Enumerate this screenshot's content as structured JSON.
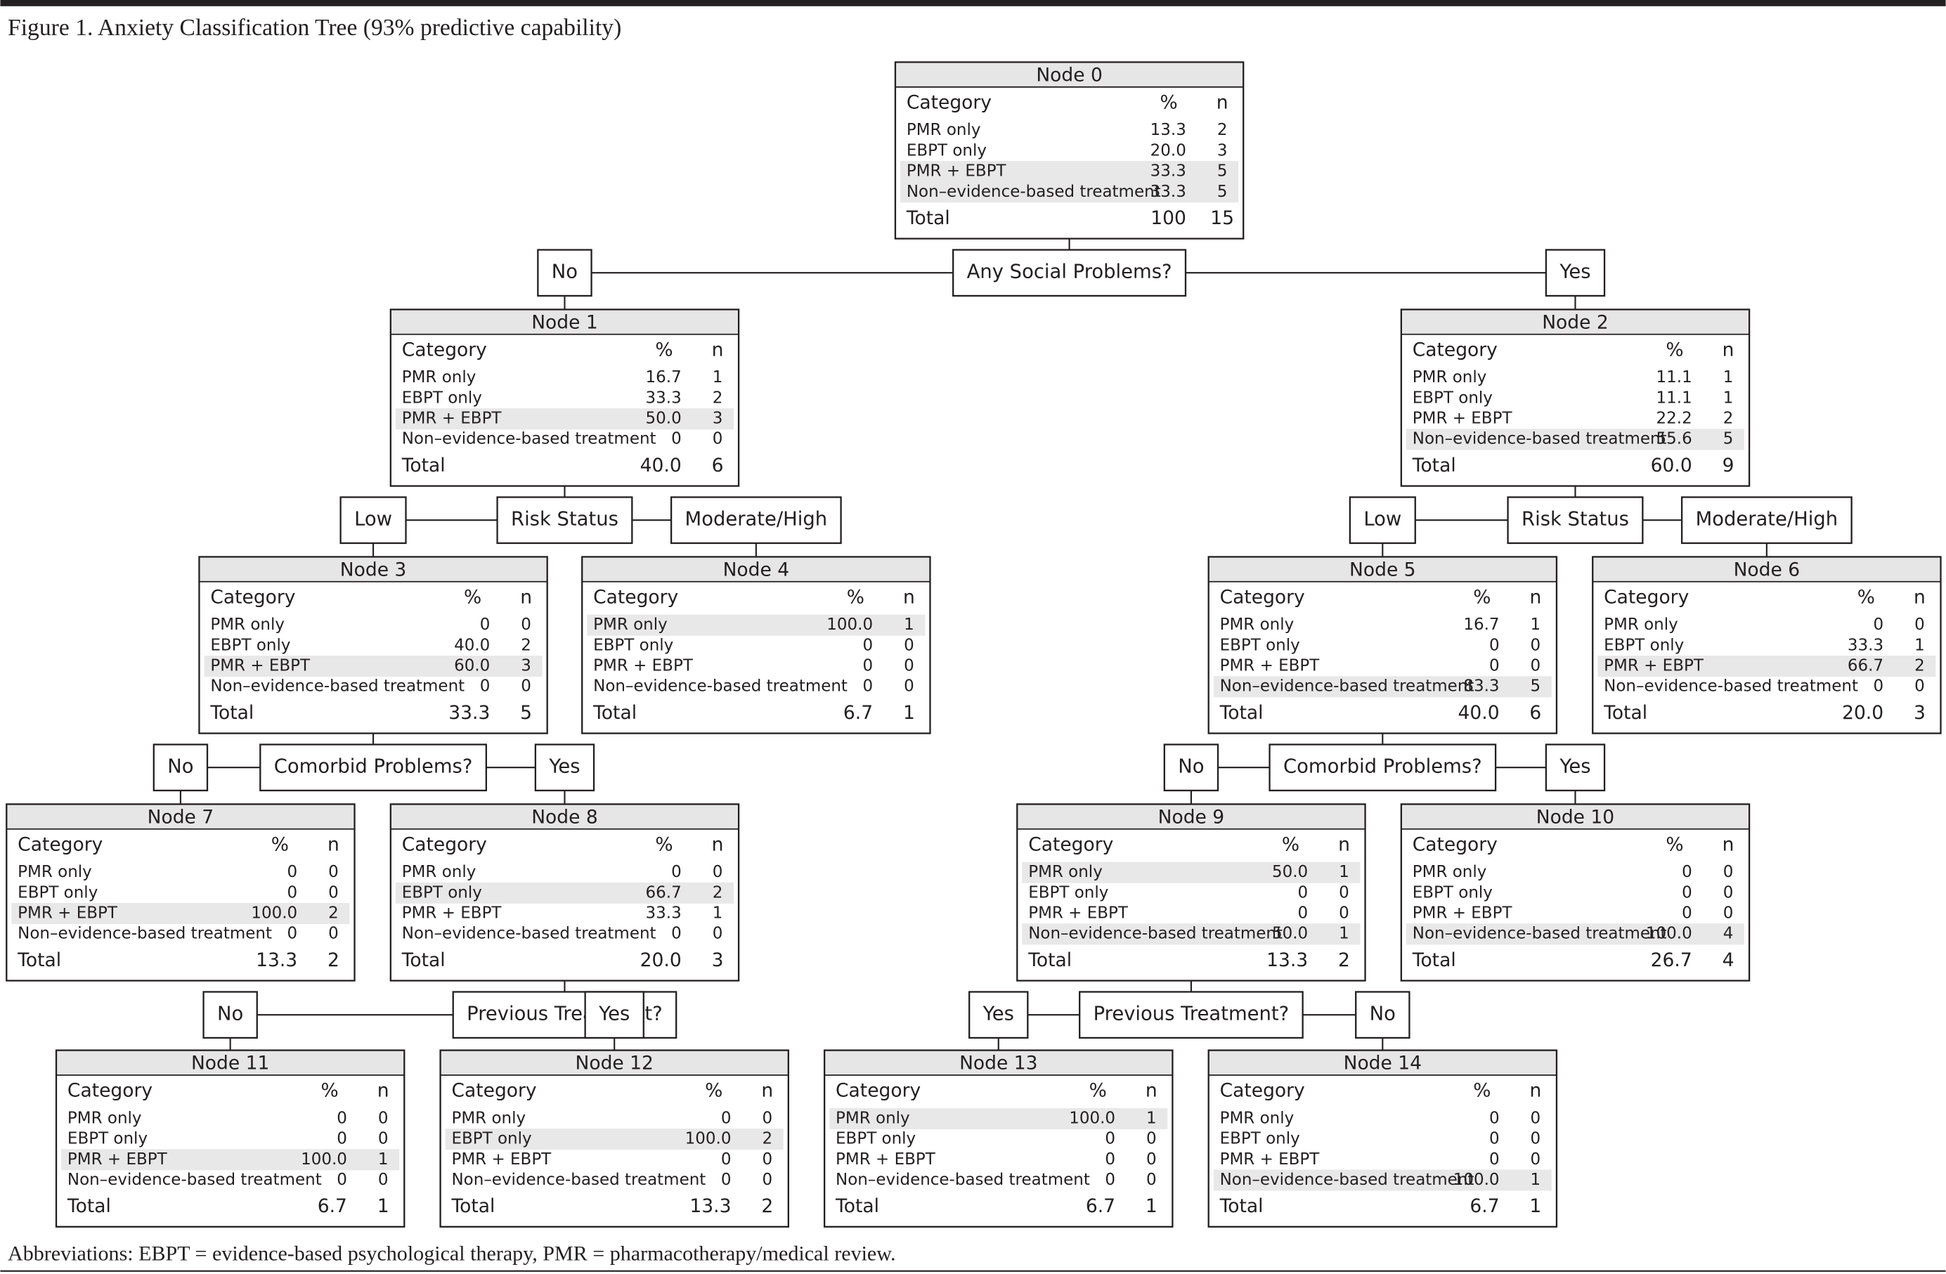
{
  "title": "Figure 1. Anxiety Classification Tree (93% predictive capability)",
  "columns": [
    "Category",
    "%",
    "n"
  ],
  "nodes": [
    {
      "title": "Node 0",
      "rows": [
        [
          "PMR only",
          "13.3",
          "2"
        ],
        [
          "EBPT only",
          "20.0",
          "3"
        ],
        [
          "PMR + EBPT",
          "33.3",
          "5"
        ],
        [
          "Non–evidence-based treatment",
          "33.3",
          "5"
        ]
      ],
      "total": [
        "Total",
        "100",
        "15"
      ],
      "highlight": [
        2,
        3
      ]
    },
    {
      "title": "Node 1",
      "rows": [
        [
          "PMR only",
          "16.7",
          "1"
        ],
        [
          "EBPT only",
          "33.3",
          "2"
        ],
        [
          "PMR + EBPT",
          "50.0",
          "3"
        ],
        [
          "Non–evidence-based treatment",
          "0",
          "0"
        ]
      ],
      "total": [
        "Total",
        "40.0",
        "6"
      ],
      "highlight": [
        2
      ]
    },
    {
      "title": "Node 2",
      "rows": [
        [
          "PMR only",
          "11.1",
          "1"
        ],
        [
          "EBPT only",
          "11.1",
          "1"
        ],
        [
          "PMR + EBPT",
          "22.2",
          "2"
        ],
        [
          "Non–evidence-based treatment",
          "55.6",
          "5"
        ]
      ],
      "total": [
        "Total",
        "60.0",
        "9"
      ],
      "highlight": [
        3
      ]
    },
    {
      "title": "Node 3",
      "rows": [
        [
          "PMR only",
          "0",
          "0"
        ],
        [
          "EBPT only",
          "40.0",
          "2"
        ],
        [
          "PMR + EBPT",
          "60.0",
          "3"
        ],
        [
          "Non–evidence-based treatment",
          "0",
          "0"
        ]
      ],
      "total": [
        "Total",
        "33.3",
        "5"
      ],
      "highlight": [
        2
      ]
    },
    {
      "title": "Node 4",
      "rows": [
        [
          "PMR only",
          "100.0",
          "1"
        ],
        [
          "EBPT only",
          "0",
          "0"
        ],
        [
          "PMR + EBPT",
          "0",
          "0"
        ],
        [
          "Non–evidence-based treatment",
          "0",
          "0"
        ]
      ],
      "total": [
        "Total",
        "6.7",
        "1"
      ],
      "highlight": [
        0
      ]
    },
    {
      "title": "Node 5",
      "rows": [
        [
          "PMR only",
          "16.7",
          "1"
        ],
        [
          "EBPT only",
          "0",
          "0"
        ],
        [
          "PMR + EBPT",
          "0",
          "0"
        ],
        [
          "Non–evidence-based treatment",
          "83.3",
          "5"
        ]
      ],
      "total": [
        "Total",
        "40.0",
        "6"
      ],
      "highlight": [
        3
      ]
    },
    {
      "title": "Node 6",
      "rows": [
        [
          "PMR only",
          "0",
          "0"
        ],
        [
          "EBPT only",
          "33.3",
          "1"
        ],
        [
          "PMR + EBPT",
          "66.7",
          "2"
        ],
        [
          "Non–evidence-based treatment",
          "0",
          "0"
        ]
      ],
      "total": [
        "Total",
        "20.0",
        "3"
      ],
      "highlight": [
        2
      ]
    },
    {
      "title": "Node 7",
      "rows": [
        [
          "PMR only",
          "0",
          "0"
        ],
        [
          "EBPT only",
          "0",
          "0"
        ],
        [
          "PMR + EBPT",
          "100.0",
          "2"
        ],
        [
          "Non–evidence-based treatment",
          "0",
          "0"
        ]
      ],
      "total": [
        "Total",
        "13.3",
        "2"
      ],
      "highlight": [
        2
      ]
    },
    {
      "title": "Node 8",
      "rows": [
        [
          "PMR only",
          "0",
          "0"
        ],
        [
          "EBPT only",
          "66.7",
          "2"
        ],
        [
          "PMR + EBPT",
          "33.3",
          "1"
        ],
        [
          "Non–evidence-based treatment",
          "0",
          "0"
        ]
      ],
      "total": [
        "Total",
        "20.0",
        "3"
      ],
      "highlight": [
        1
      ]
    },
    {
      "title": "Node 9",
      "rows": [
        [
          "PMR only",
          "50.0",
          "1"
        ],
        [
          "EBPT only",
          "0",
          "0"
        ],
        [
          "PMR + EBPT",
          "0",
          "0"
        ],
        [
          "Non–evidence-based treatment",
          "50.0",
          "1"
        ]
      ],
      "total": [
        "Total",
        "13.3",
        "2"
      ],
      "highlight": [
        0,
        3
      ]
    },
    {
      "title": "Node 10",
      "rows": [
        [
          "PMR only",
          "0",
          "0"
        ],
        [
          "EBPT only",
          "0",
          "0"
        ],
        [
          "PMR + EBPT",
          "0",
          "0"
        ],
        [
          "Non–evidence-based treatment",
          "100.0",
          "4"
        ]
      ],
      "total": [
        "Total",
        "26.7",
        "4"
      ],
      "highlight": [
        3
      ]
    },
    {
      "title": "Node 11",
      "rows": [
        [
          "PMR only",
          "0",
          "0"
        ],
        [
          "EBPT only",
          "0",
          "0"
        ],
        [
          "PMR + EBPT",
          "100.0",
          "1"
        ],
        [
          "Non–evidence-based treatment",
          "0",
          "0"
        ]
      ],
      "total": [
        "Total",
        "6.7",
        "1"
      ],
      "highlight": [
        2
      ]
    },
    {
      "title": "Node 12",
      "rows": [
        [
          "PMR only",
          "0",
          "0"
        ],
        [
          "EBPT only",
          "100.0",
          "2"
        ],
        [
          "PMR + EBPT",
          "0",
          "0"
        ],
        [
          "Non–evidence-based treatment",
          "0",
          "0"
        ]
      ],
      "total": [
        "Total",
        "13.3",
        "2"
      ],
      "highlight": [
        1
      ]
    },
    {
      "title": "Node 13",
      "rows": [
        [
          "PMR only",
          "100.0",
          "1"
        ],
        [
          "EBPT only",
          "0",
          "0"
        ],
        [
          "PMR + EBPT",
          "0",
          "0"
        ],
        [
          "Non–evidence-based treatment",
          "0",
          "0"
        ]
      ],
      "total": [
        "Total",
        "6.7",
        "1"
      ],
      "highlight": [
        0
      ]
    },
    {
      "title": "Node 14",
      "rows": [
        [
          "PMR only",
          "0",
          "0"
        ],
        [
          "EBPT only",
          "0",
          "0"
        ],
        [
          "PMR + EBPT",
          "0",
          "0"
        ],
        [
          "Non–evidence-based treatment",
          "100.0",
          "1"
        ]
      ],
      "total": [
        "Total",
        "6.7",
        "1"
      ],
      "highlight": [
        3
      ]
    }
  ],
  "splits": [
    {
      "question": "Any Social Problems?",
      "left": "No",
      "right": "Yes"
    },
    {
      "question": "Risk Status",
      "left": "Low",
      "right": "Moderate/High"
    },
    {
      "question": "Risk Status",
      "left": "Low",
      "right": "Moderate/High"
    },
    {
      "question": "Comorbid Problems?",
      "left": "No",
      "right": "Yes"
    },
    {
      "question": "Comorbid Problems?",
      "left": "No",
      "right": "Yes"
    },
    {
      "question": "Previous Treatment?",
      "left": "No",
      "right": "Yes"
    },
    {
      "question": "Previous Treatment?",
      "left": "Yes",
      "right": "No"
    }
  ],
  "footnote": "Abbreviations: EBPT = evidence-based psychological therapy, PMR = pharmacotherapy/medical review."
}
